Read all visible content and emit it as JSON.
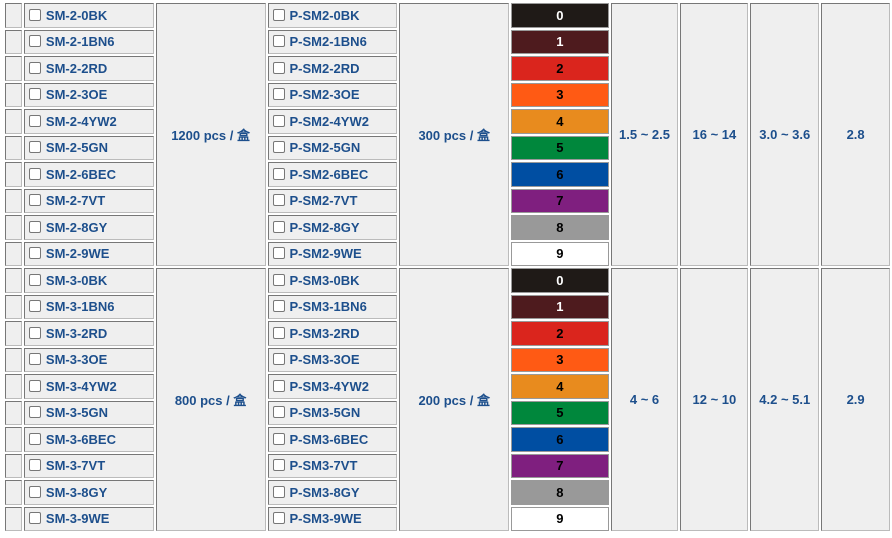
{
  "colors": [
    {
      "code": "0",
      "bg": "#1f1a17",
      "fg": "#ffffff"
    },
    {
      "code": "1",
      "bg": "#4e1b1e",
      "fg": "#ffffff"
    },
    {
      "code": "2",
      "bg": "#da251d",
      "fg": "#000000"
    },
    {
      "code": "3",
      "bg": "#ff5a14",
      "fg": "#000000"
    },
    {
      "code": "4",
      "bg": "#e88b1e",
      "fg": "#000000"
    },
    {
      "code": "5",
      "bg": "#00873c",
      "fg": "#000000"
    },
    {
      "code": "6",
      "bg": "#004ea2",
      "fg": "#000000"
    },
    {
      "code": "7",
      "bg": "#7f1f7f",
      "fg": "#000000"
    },
    {
      "code": "8",
      "bg": "#999999",
      "fg": "#000000"
    },
    {
      "code": "9",
      "bg": "#ffffff",
      "fg": "#000000"
    }
  ],
  "groups": [
    {
      "items": [
        "SM-2-0BK",
        "SM-2-1BN6",
        "SM-2-2RD",
        "SM-2-3OE",
        "SM-2-4YW2",
        "SM-2-5GN",
        "SM-2-6BEC",
        "SM-2-7VT",
        "SM-2-8GY",
        "SM-2-9WE"
      ],
      "qty": "1200 pcs / 盒",
      "p_items": [
        "P-SM2-0BK",
        "P-SM2-1BN6",
        "P-SM2-2RD",
        "P-SM2-3OE",
        "P-SM2-4YW2",
        "P-SM2-5GN",
        "P-SM2-6BEC",
        "P-SM2-7VT",
        "P-SM2-8GY",
        "P-SM2-9WE"
      ],
      "p_qty": "300 pcs / 盒",
      "v1": "1.5 ~ 2.5",
      "v2": "16 ~ 14",
      "v3": "3.0 ~ 3.6",
      "v4": "2.8"
    },
    {
      "items": [
        "SM-3-0BK",
        "SM-3-1BN6",
        "SM-3-2RD",
        "SM-3-3OE",
        "SM-3-4YW2",
        "SM-3-5GN",
        "SM-3-6BEC",
        "SM-3-7VT",
        "SM-3-8GY",
        "SM-3-9WE"
      ],
      "qty": "800 pcs / 盒",
      "p_items": [
        "P-SM3-0BK",
        "P-SM3-1BN6",
        "P-SM3-2RD",
        "P-SM3-3OE",
        "P-SM3-4YW2",
        "P-SM3-5GN",
        "P-SM3-6BEC",
        "P-SM3-7VT",
        "P-SM3-8GY",
        "P-SM3-9WE"
      ],
      "p_qty": "200 pcs / 盒",
      "v1": "4 ~ 6",
      "v2": "12 ~ 10",
      "v3": "4.2 ~ 5.1",
      "v4": "2.9"
    }
  ]
}
